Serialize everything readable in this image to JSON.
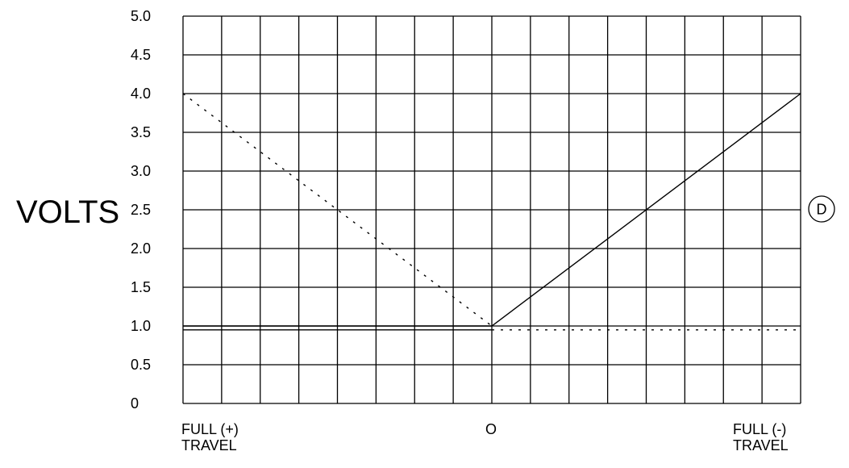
{
  "chart_data": {
    "type": "line",
    "title": "",
    "ylabel": "VOLTS",
    "xlabel": "",
    "ylim": [
      0,
      5.0
    ],
    "yticks": [
      "0",
      "0.5",
      "1.0",
      "1.5",
      "2.0",
      "2.5",
      "3.0",
      "3.5",
      "4.0",
      "4.5",
      "5.0"
    ],
    "xlim": [
      -1,
      1
    ],
    "xticks": [
      {
        "value": -1,
        "lines": [
          "FULL (+)",
          "TRAVEL"
        ]
      },
      {
        "value": 0,
        "lines": [
          "O"
        ]
      },
      {
        "value": 1,
        "lines": [
          "FULL (-)",
          "TRAVEL"
        ]
      }
    ],
    "grid": true,
    "grid_columns": 16,
    "grid_rows": 10,
    "series": [
      {
        "style": "solid",
        "points": [
          [
            -1,
            1.0
          ],
          [
            0,
            1.0
          ],
          [
            1,
            4.0
          ]
        ]
      },
      {
        "style": "solid",
        "points": [
          [
            -1,
            0.95
          ],
          [
            0,
            0.95
          ]
        ]
      },
      {
        "style": "dotted",
        "points": [
          [
            -1,
            4.0
          ],
          [
            0,
            1.0
          ]
        ]
      },
      {
        "style": "dotted",
        "points": [
          [
            0,
            0.95
          ],
          [
            1,
            0.95
          ]
        ]
      }
    ],
    "annotations": [
      {
        "text": "D",
        "shape": "circle",
        "y": 2.5,
        "placement": "right"
      }
    ],
    "colors": {
      "line": "#000000",
      "grid": "#000000",
      "background": "#ffffff"
    }
  }
}
